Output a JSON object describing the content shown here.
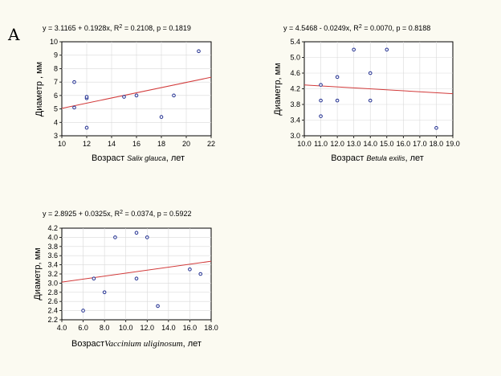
{
  "panel_label": "A",
  "chart_data": [
    {
      "type": "scatter",
      "equation": {
        "main": "y = 3.1165 + 0.1928x, R",
        "sup": "2",
        "rest": " = 0.2108, p = 0.1819"
      },
      "xlabel": {
        "before": "Возраст ",
        "species": "Salix glauca",
        "after": ", лет"
      },
      "ylabel": "Диаметр , мм",
      "xlim": [
        10,
        22
      ],
      "ylim": [
        3,
        10
      ],
      "xticks": [
        10,
        12,
        14,
        16,
        18,
        20,
        22
      ],
      "yticks": [
        3,
        4,
        5,
        6,
        7,
        8,
        9,
        10
      ],
      "tick_decimals": 0,
      "regression": {
        "intercept": 3.1165,
        "slope": 0.1928
      },
      "points": [
        {
          "x": 11,
          "y": 7.0
        },
        {
          "x": 11,
          "y": 5.1
        },
        {
          "x": 12,
          "y": 5.8
        },
        {
          "x": 12,
          "y": 5.9
        },
        {
          "x": 12,
          "y": 3.6
        },
        {
          "x": 15,
          "y": 5.9
        },
        {
          "x": 16,
          "y": 6.0
        },
        {
          "x": 18,
          "y": 4.4
        },
        {
          "x": 19,
          "y": 6.0
        },
        {
          "x": 21,
          "y": 9.3
        }
      ]
    },
    {
      "type": "scatter",
      "equation": {
        "main": "y = 4.5468 - 0.0249x, R",
        "sup": "2",
        "rest": " = 0.0070, p = 0.8188"
      },
      "xlabel": {
        "before": "Возраст ",
        "species": "Betula exilis",
        "after": ", лет"
      },
      "ylabel": "Диаметр, мм",
      "xlim": [
        10,
        19
      ],
      "ylim": [
        3.0,
        5.4
      ],
      "xticks": [
        10,
        11,
        12,
        13,
        14,
        15,
        16,
        17,
        18,
        19
      ],
      "yticks": [
        3.0,
        3.4,
        3.8,
        4.2,
        4.6,
        5.0,
        5.4
      ],
      "tick_decimals": 1,
      "regression": {
        "intercept": 4.5468,
        "slope": -0.0249
      },
      "points": [
        {
          "x": 11,
          "y": 4.3
        },
        {
          "x": 11,
          "y": 3.9
        },
        {
          "x": 11,
          "y": 3.5
        },
        {
          "x": 12,
          "y": 4.5
        },
        {
          "x": 12,
          "y": 3.9
        },
        {
          "x": 13,
          "y": 5.2
        },
        {
          "x": 14,
          "y": 4.6
        },
        {
          "x": 14,
          "y": 3.9
        },
        {
          "x": 15,
          "y": 5.2
        },
        {
          "x": 18,
          "y": 3.2
        }
      ]
    },
    {
      "type": "scatter",
      "equation": {
        "main": "y = 2.8925 + 0.0325x, R",
        "sup": "2",
        "rest": " = 0.0374, p = 0.5922"
      },
      "xlabel": {
        "before": "Возраст",
        "species": "Vaccinium uliginosum",
        "after": ", лет"
      },
      "ylabel": "Диаметр, мм",
      "xlim": [
        4,
        18
      ],
      "ylim": [
        2.2,
        4.2
      ],
      "xticks": [
        4,
        6,
        8,
        10,
        12,
        14,
        16,
        18
      ],
      "yticks": [
        2.2,
        2.4,
        2.6,
        2.8,
        3.0,
        3.2,
        3.4,
        3.6,
        3.8,
        4.0,
        4.2
      ],
      "tick_decimals": 1,
      "regression": {
        "intercept": 2.8925,
        "slope": 0.0325
      },
      "points": [
        {
          "x": 6,
          "y": 2.4
        },
        {
          "x": 7,
          "y": 3.1
        },
        {
          "x": 8,
          "y": 2.8
        },
        {
          "x": 9,
          "y": 4.0
        },
        {
          "x": 11,
          "y": 4.1
        },
        {
          "x": 11,
          "y": 3.1
        },
        {
          "x": 12,
          "y": 4.0
        },
        {
          "x": 13,
          "y": 2.5
        },
        {
          "x": 16,
          "y": 3.3
        },
        {
          "x": 17,
          "y": 3.2
        }
      ]
    }
  ]
}
